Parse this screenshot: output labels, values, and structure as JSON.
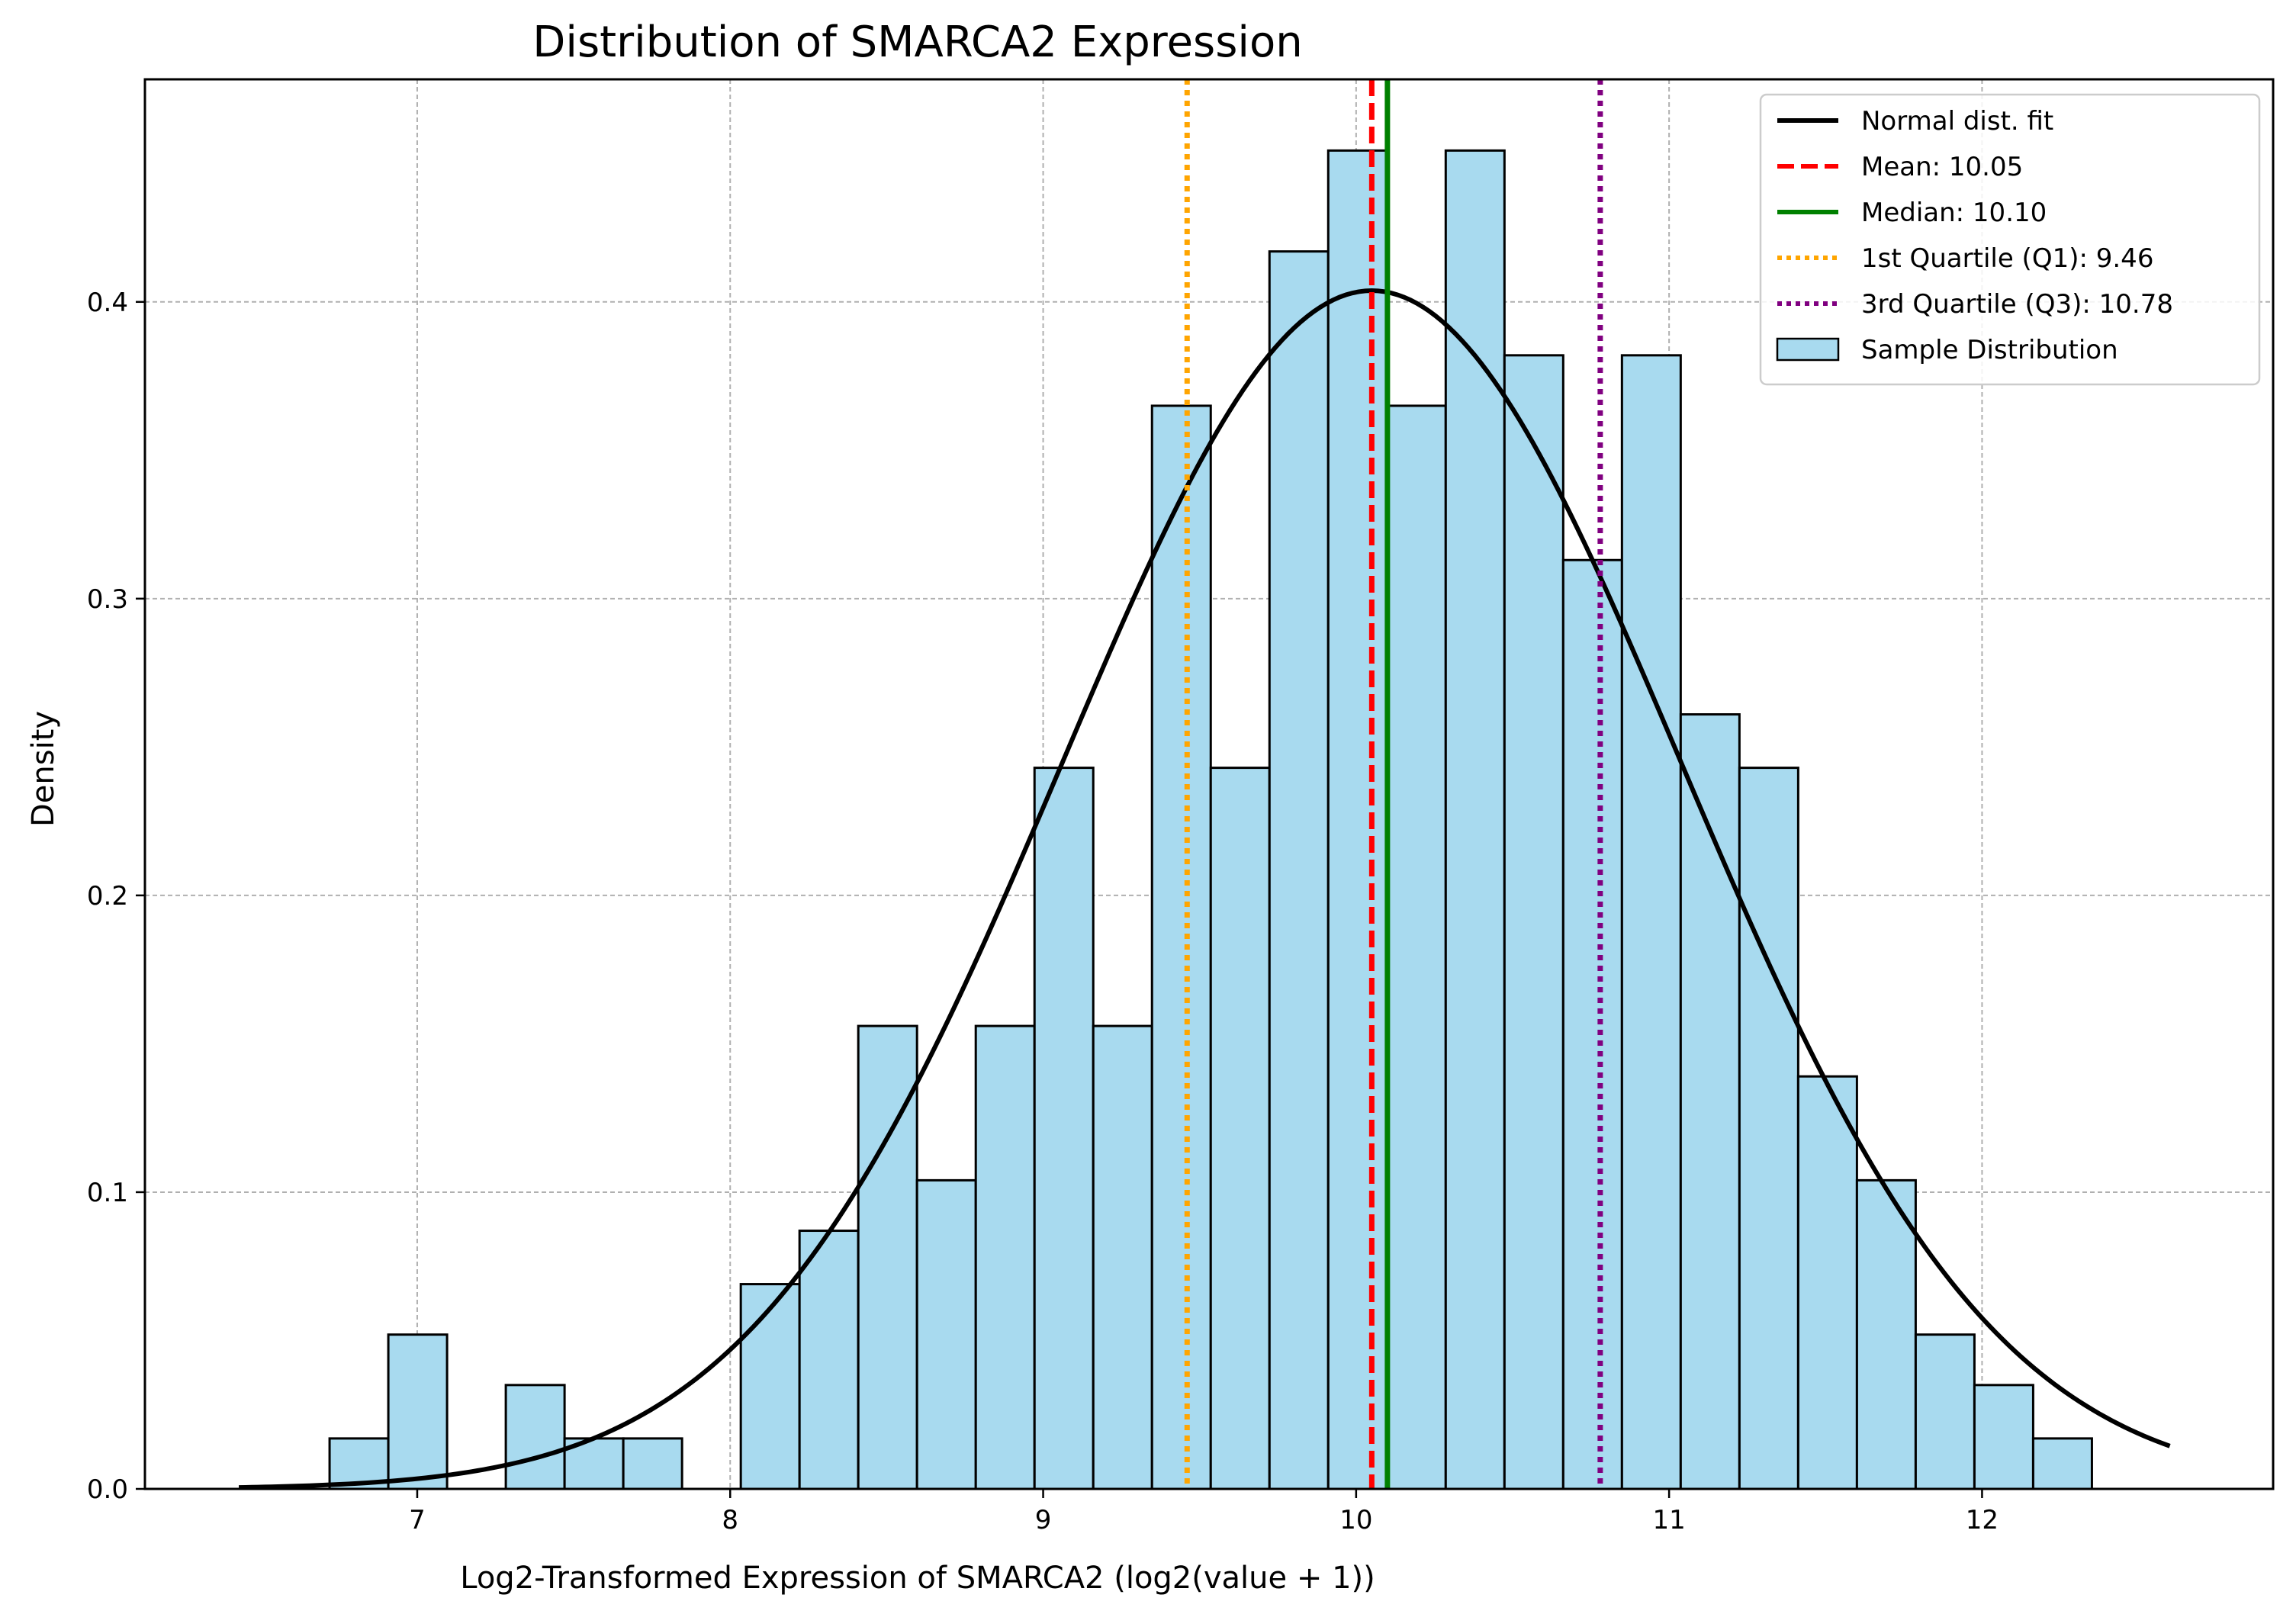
{
  "chart_data": {
    "type": "histogram",
    "title": "Distribution of SMARCA2 Expression",
    "xlabel": "Log2-Transformed Expression of SMARCA2 (log2(value + 1))",
    "ylabel": "Density",
    "xlim": [
      6.13,
      12.93
    ],
    "ylim": [
      0,
      0.475
    ],
    "xticks": [
      7,
      8,
      9,
      10,
      11,
      12
    ],
    "yticks": [
      0.0,
      0.1,
      0.2,
      0.3,
      0.4
    ],
    "ytick_labels": [
      "0.0",
      "0.1",
      "0.2",
      "0.3",
      "0.4"
    ],
    "grid": true,
    "legend_position": "top-right",
    "bins": {
      "start": 6.72,
      "width": 0.1877,
      "densities": [
        0.017,
        0.052,
        0.0,
        0.035,
        0.017,
        0.017,
        0.0,
        0.069,
        0.087,
        0.156,
        0.104,
        0.156,
        0.243,
        0.156,
        0.365,
        0.243,
        0.417,
        0.451,
        0.365,
        0.451,
        0.382,
        0.313,
        0.382,
        0.261,
        0.243,
        0.139,
        0.104,
        0.052,
        0.035,
        0.017
      ]
    },
    "normal_fit": {
      "mean": 10.05,
      "std": 0.988,
      "x_range": [
        6.43,
        12.6
      ]
    },
    "vlines": [
      {
        "name": "mean",
        "value": 10.05
      },
      {
        "name": "median",
        "value": 10.1
      },
      {
        "name": "q1",
        "value": 9.46
      },
      {
        "name": "q3",
        "value": 10.78
      }
    ],
    "legend": [
      {
        "label": "Normal dist. fit",
        "style": "solid",
        "color": "#000000"
      },
      {
        "label": "Mean: 10.05",
        "style": "dashed",
        "color": "#ff0000"
      },
      {
        "label": "Median: 10.10",
        "style": "solid",
        "color": "#008000"
      },
      {
        "label": "1st Quartile (Q1): 9.46",
        "style": "dotted",
        "color": "#ffa500"
      },
      {
        "label": "3rd Quartile (Q3): 10.78",
        "style": "dotted",
        "color": "#800080"
      },
      {
        "label": "Sample Distribution",
        "style": "patch",
        "color": "#a8daef"
      }
    ],
    "colors": {
      "bar_fill": "#a8daef",
      "bar_edge": "#000000",
      "fit": "#000000",
      "mean": "#ff0000",
      "median": "#008000",
      "q1": "#ffa500",
      "q3": "#800080",
      "grid": "#b0b0b0"
    }
  }
}
